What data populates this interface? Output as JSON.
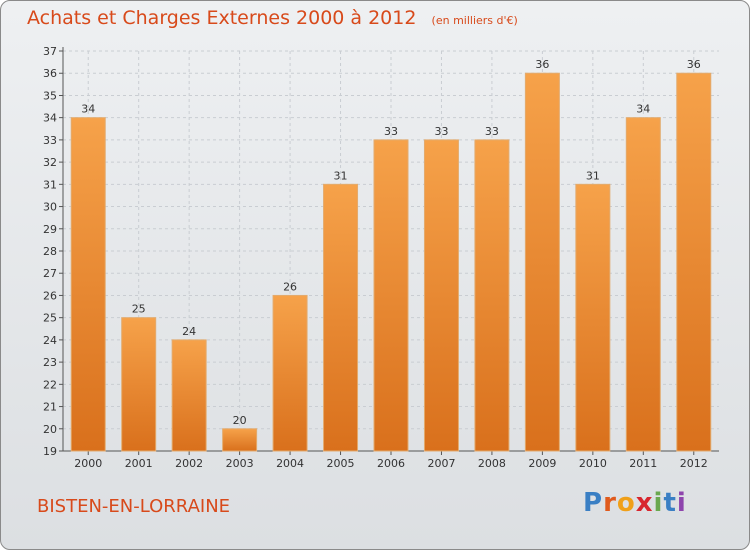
{
  "header": {
    "title": "Achats et Charges Externes 2000 à 2012",
    "subtitle": "(en milliers d'€)"
  },
  "footer": {
    "place_name": "BISTEN-EN-LORRAINE",
    "logo_text": "Proxiti",
    "logo_colors": [
      "#3a7fc4",
      "#e05a1c",
      "#f0a019",
      "#d8262e",
      "#6aa84f",
      "#3a7fc4",
      "#8e44ad"
    ]
  },
  "chart_data": {
    "type": "bar",
    "title": "Achats et Charges Externes 2000 à 2012",
    "subtitle": "(en milliers d'€)",
    "categories": [
      "2000",
      "2001",
      "2002",
      "2003",
      "2004",
      "2005",
      "2006",
      "2007",
      "2008",
      "2009",
      "2010",
      "2011",
      "2012"
    ],
    "values": [
      34,
      25,
      24,
      20,
      26,
      31,
      33,
      33,
      33,
      36,
      31,
      34,
      36
    ],
    "ylim": [
      19,
      37
    ],
    "yticks": [
      19,
      20,
      21,
      22,
      23,
      24,
      25,
      26,
      27,
      28,
      29,
      30,
      31,
      32,
      33,
      34,
      35,
      36,
      37
    ],
    "grid": true,
    "bar_color": "#f0952f"
  }
}
